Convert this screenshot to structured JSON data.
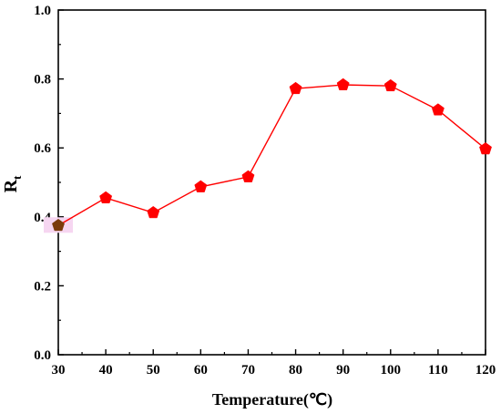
{
  "chart_data": {
    "type": "line",
    "title": "",
    "xlabel": "Temperature(℃)",
    "ylabel": {
      "main": "R",
      "sub": "t"
    },
    "xlim": [
      30,
      120
    ],
    "ylim": [
      0.0,
      1.0
    ],
    "x_ticks": [
      "30",
      "40",
      "50",
      "60",
      "70",
      "80",
      "90",
      "100",
      "110",
      "120"
    ],
    "x_tick_values": [
      30,
      40,
      50,
      60,
      70,
      80,
      90,
      100,
      110,
      120
    ],
    "y_ticks": [
      "0.0",
      "0.2",
      "0.4",
      "0.6",
      "0.8",
      "1.0"
    ],
    "y_tick_values": [
      0.0,
      0.2,
      0.4,
      0.6,
      0.8,
      1.0
    ],
    "grid": false,
    "legend": false,
    "series": [
      {
        "x": [
          30,
          40,
          50,
          60,
          70,
          80,
          90,
          100,
          110,
          120
        ],
        "values": [
          0.375,
          0.455,
          0.412,
          0.487,
          0.516,
          0.772,
          0.783,
          0.78,
          0.71,
          0.597
        ],
        "color": "#ff0000",
        "marker": "pentagon",
        "highlight_index": 0,
        "highlight_color": "#7a3a0a",
        "highlight_bg": "#f6d6f1"
      }
    ]
  }
}
